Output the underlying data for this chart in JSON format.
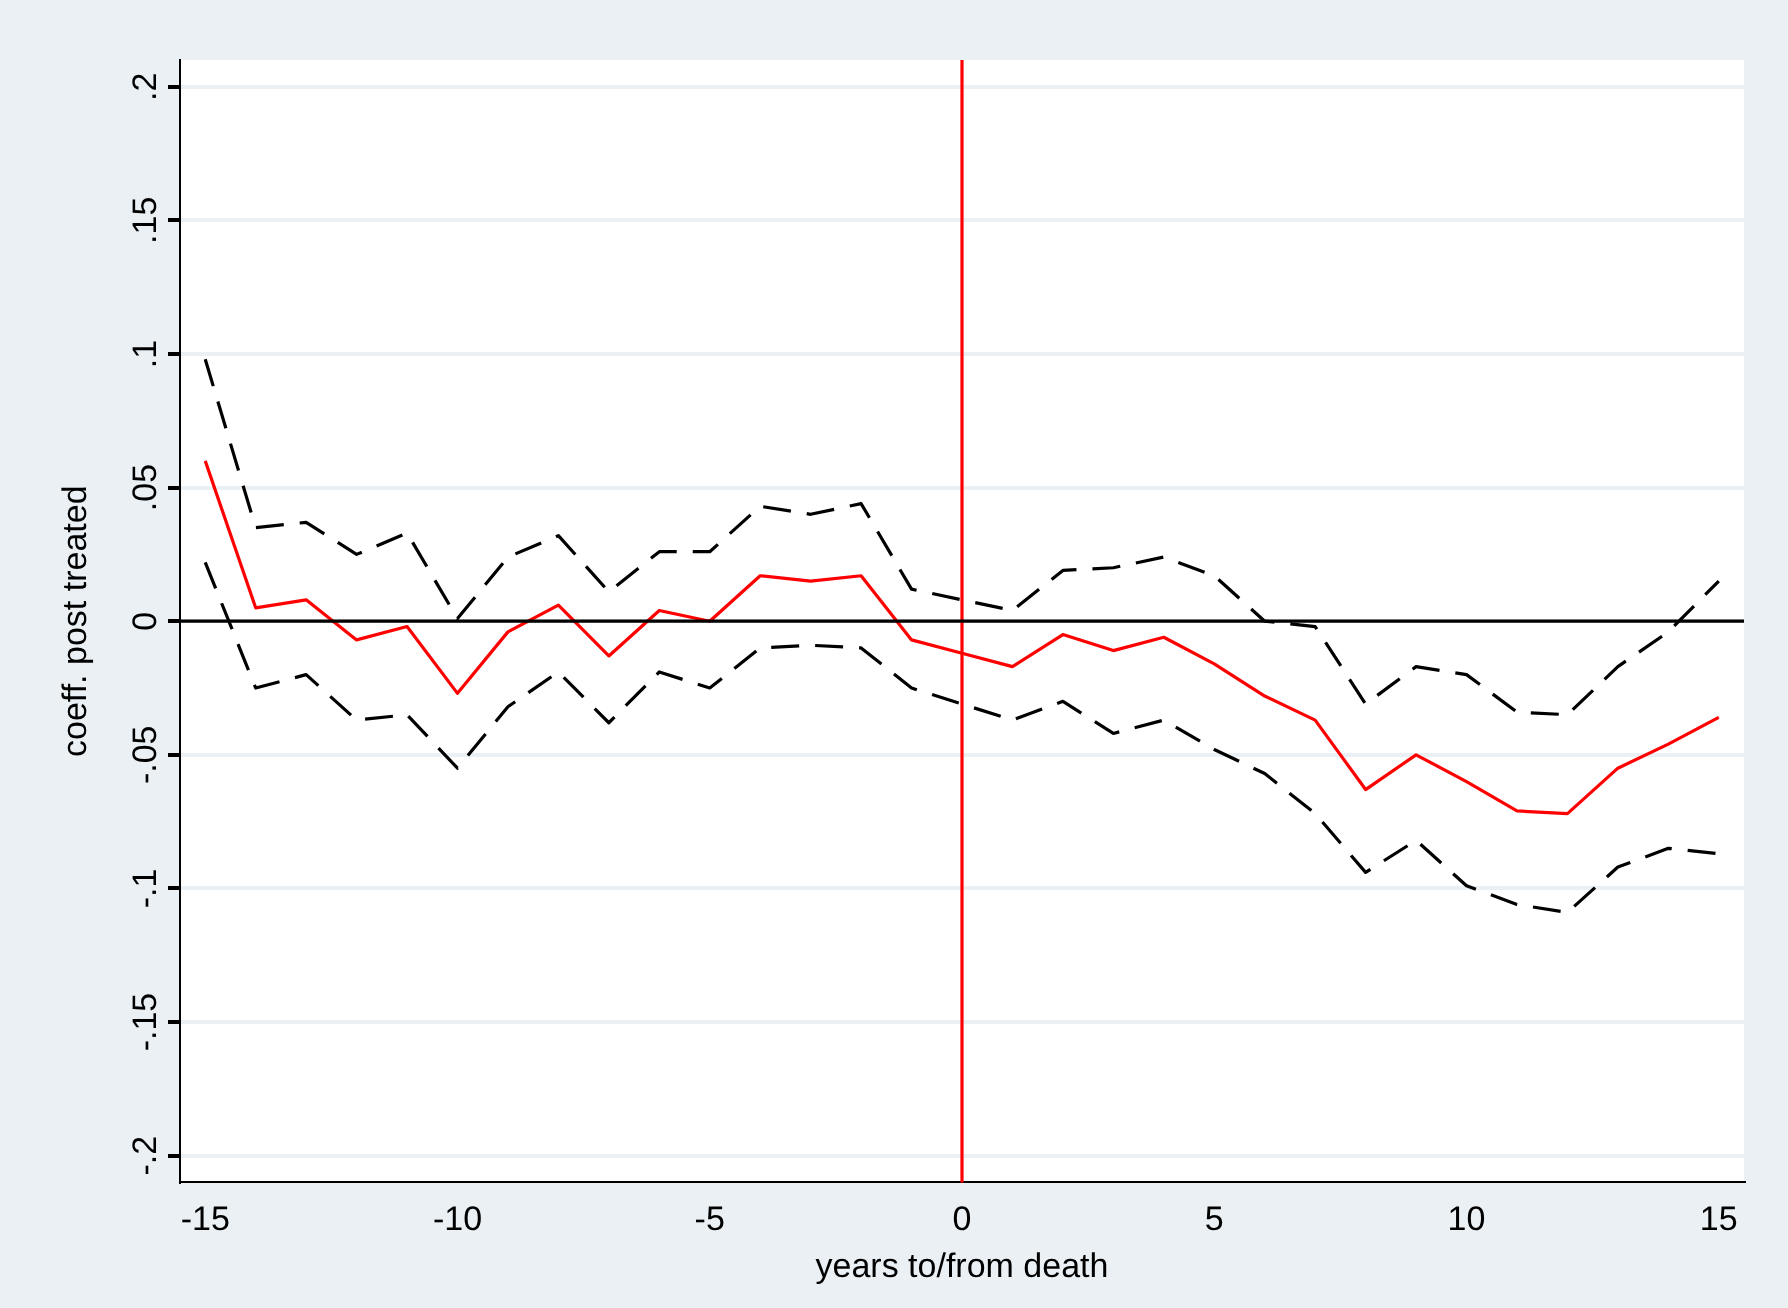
{
  "chart_data": {
    "type": "line",
    "xlabel": "years to/from death",
    "ylabel": "coeff. post treated",
    "x": [
      -15,
      -14,
      -13,
      -12,
      -11,
      -10,
      -9,
      -8,
      -7,
      -6,
      -5,
      -4,
      -3,
      -2,
      -1,
      0,
      1,
      2,
      3,
      4,
      5,
      6,
      7,
      8,
      9,
      10,
      11,
      12,
      13,
      14,
      15
    ],
    "series": [
      {
        "color": "#ff0000",
        "line_style": "solid",
        "values": [
          0.06,
          0.005,
          0.008,
          -0.007,
          -0.002,
          -0.027,
          -0.004,
          0.006,
          -0.013,
          0.004,
          0.0,
          0.017,
          0.015,
          0.017,
          -0.007,
          -0.012,
          -0.017,
          -0.005,
          -0.011,
          -0.006,
          -0.016,
          -0.028,
          -0.037,
          -0.063,
          -0.05,
          -0.06,
          -0.071,
          -0.072,
          -0.055,
          -0.046,
          -0.036
        ]
      },
      {
        "color": "#000000",
        "line_style": "dashed",
        "values": [
          0.098,
          0.035,
          0.037,
          0.025,
          0.033,
          0.001,
          0.024,
          0.032,
          0.011,
          0.026,
          0.026,
          0.043,
          0.04,
          0.044,
          0.012,
          0.008,
          0.004,
          0.019,
          0.02,
          0.024,
          0.017,
          0.0,
          -0.002,
          -0.031,
          -0.017,
          -0.02,
          -0.034,
          -0.035,
          -0.017,
          -0.004,
          0.015
        ]
      },
      {
        "color": "#000000",
        "line_style": "dashed",
        "values": [
          0.022,
          -0.025,
          -0.02,
          -0.037,
          -0.035,
          -0.055,
          -0.032,
          -0.019,
          -0.038,
          -0.019,
          -0.025,
          -0.01,
          -0.009,
          -0.01,
          -0.025,
          -0.031,
          -0.037,
          -0.03,
          -0.042,
          -0.037,
          -0.048,
          -0.057,
          -0.072,
          -0.094,
          -0.082,
          -0.099,
          -0.106,
          -0.109,
          -0.092,
          -0.085,
          -0.087
        ]
      }
    ],
    "xlim": [
      -15.5,
      15.5
    ],
    "xticks": [
      -15,
      -10,
      -5,
      0,
      5,
      10,
      15
    ],
    "ylim": [
      -0.21,
      0.21
    ],
    "yticks": [
      {
        "value": -0.2,
        "label": "-.2"
      },
      {
        "value": -0.15,
        "label": "-.15"
      },
      {
        "value": -0.1,
        "label": "-.1"
      },
      {
        "value": -0.05,
        "label": "-.05"
      },
      {
        "value": 0,
        "label": "0"
      },
      {
        "value": 0.05,
        "label": ".05"
      },
      {
        "value": 0.1,
        "label": ".1"
      },
      {
        "value": 0.15,
        "label": ".15"
      },
      {
        "value": 0.2,
        "label": ".2"
      }
    ],
    "ref_lines": [
      {
        "axis": "x",
        "value": 0,
        "color": "#ff0000"
      },
      {
        "axis": "y",
        "value": 0,
        "color": "#000000"
      }
    ],
    "grid": "y",
    "legend": false,
    "marker": "none"
  }
}
